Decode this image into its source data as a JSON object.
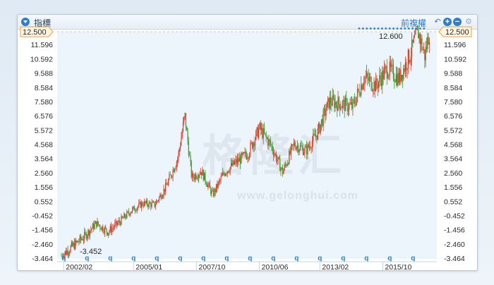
{
  "header": {
    "title": "指標",
    "adjust_label": "前複權",
    "icons": [
      "menu-toggle",
      "undo-icon",
      "zoom-in-icon",
      "zoom-out-icon",
      "gear-icon"
    ]
  },
  "watermark": {
    "main": "格隆汇",
    "sub": "www.gelonghui.com"
  },
  "colors": {
    "up": "#d93a2a",
    "down": "#3a9a2a",
    "axis_label": "#2a2a2a",
    "accent": "#2f7ec9",
    "current_tag_border": "#f0a030"
  },
  "chart_data": {
    "type": "candlestick",
    "ylim": [
      -3.464,
      12.6
    ],
    "ylim_display": [
      -3.464,
      12.5
    ],
    "y_ticks": [
      -3.464,
      -2.46,
      -1.456,
      -0.452,
      0.552,
      1.556,
      2.56,
      3.564,
      4.568,
      5.572,
      6.576,
      7.58,
      8.584,
      9.588,
      10.592,
      11.596
    ],
    "y_tick_labels": [
      "-3.464",
      "-2.460",
      "-1.456",
      "-0.452",
      "0.552",
      "1.556",
      "2.560",
      "3.564",
      "4.568",
      "5.572",
      "6.576",
      "7.580",
      "8.584",
      "9.588",
      "10.592",
      "11.596"
    ],
    "current_value_label": "12.500",
    "annotations": {
      "max": "12.600",
      "min": "-3.452"
    },
    "x_ticks": [
      "2002/02",
      "2005/01",
      "2007/10",
      "2010/06",
      "2013/02",
      "2015/10"
    ],
    "x_range": [
      2002.0,
      2018.0
    ],
    "x_tick_positions": [
      2002.1,
      2005.1,
      2007.8,
      2010.5,
      2013.1,
      2015.8
    ],
    "marker_label": "q",
    "marker_positions": [
      2002.1,
      2003.1,
      2004.1,
      2005.1,
      2006.1,
      2007.1,
      2008.1,
      2009.1,
      2010.1,
      2011.1,
      2012.1,
      2013.1,
      2014.1,
      2015.1,
      2016.1,
      2017.1
    ],
    "dots_count": 18,
    "trend": [
      [
        2002.0,
        -3.3
      ],
      [
        2002.5,
        -2.6
      ],
      [
        2003.0,
        -1.9
      ],
      [
        2003.5,
        -1.0
      ],
      [
        2004.0,
        -1.6
      ],
      [
        2004.5,
        -0.9
      ],
      [
        2005.0,
        -0.1
      ],
      [
        2005.5,
        0.4
      ],
      [
        2006.0,
        0.3
      ],
      [
        2006.5,
        1.6
      ],
      [
        2007.0,
        3.6
      ],
      [
        2007.3,
        6.6
      ],
      [
        2007.6,
        2.2
      ],
      [
        2008.0,
        2.7
      ],
      [
        2008.5,
        1.0
      ],
      [
        2009.0,
        2.6
      ],
      [
        2009.5,
        3.3
      ],
      [
        2010.0,
        3.9
      ],
      [
        2010.5,
        5.7
      ],
      [
        2011.0,
        4.5
      ],
      [
        2011.5,
        2.6
      ],
      [
        2012.0,
        4.6
      ],
      [
        2012.5,
        4.1
      ],
      [
        2013.0,
        5.4
      ],
      [
        2013.5,
        7.6
      ],
      [
        2014.0,
        7.4
      ],
      [
        2014.5,
        7.2
      ],
      [
        2015.0,
        9.3
      ],
      [
        2015.5,
        8.7
      ],
      [
        2016.0,
        9.9
      ],
      [
        2016.5,
        9.2
      ],
      [
        2017.0,
        11.0
      ],
      [
        2017.3,
        12.6
      ],
      [
        2017.6,
        10.8
      ],
      [
        2017.8,
        12.5
      ]
    ]
  }
}
